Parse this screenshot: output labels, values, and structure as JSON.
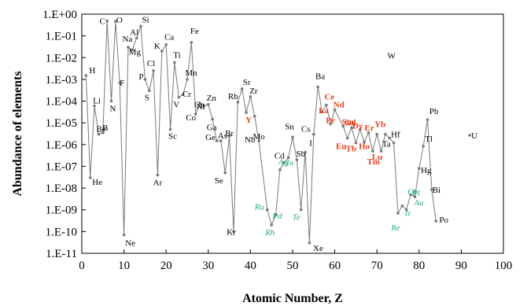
{
  "chart_data": {
    "type": "line",
    "title": "",
    "xlabel": "Atomic Number, Z",
    "ylabel": "Abundance of elements",
    "xlim": [
      0,
      100
    ],
    "ylim_log10": [
      -11,
      0
    ],
    "y_scale": "log",
    "x_ticks": [
      "0",
      "10",
      "20",
      "30",
      "40",
      "50",
      "60",
      "70",
      "80",
      "90",
      "100"
    ],
    "y_ticks": [
      "1.E-11",
      "1.E-10",
      "1.E-09",
      "1.E-08",
      "1.E-07",
      "1.E-06",
      "1.E-05",
      "1.E-04",
      "1.E-03",
      "1.E-02",
      "1.E-01",
      "1.E+00"
    ],
    "grid": false,
    "colors": {
      "line": "#7a7a7a",
      "marker": "#7a7a7a",
      "label_default": "#000000",
      "label_rare_earth": "#e8401e",
      "label_precious": "#2eab74"
    },
    "points": [
      {
        "z": 1,
        "y": 0.0015,
        "el": "H",
        "g": "n"
      },
      {
        "z": 2,
        "y": 3e-08,
        "el": "He",
        "g": "n"
      },
      {
        "z": 3,
        "y": 6e-05,
        "el": "Li",
        "g": "n"
      },
      {
        "z": 4,
        "y": 3e-06,
        "el": "Be",
        "g": "n"
      },
      {
        "z": 5,
        "y": 3.5e-06,
        "el": "B",
        "g": "n"
      },
      {
        "z": 6,
        "y": 0.5,
        "el": "C",
        "g": "n"
      },
      {
        "z": 7,
        "y": 0.0001,
        "el": "N",
        "g": "n"
      },
      {
        "z": 8,
        "y": 0.47,
        "el": "O",
        "g": "n"
      },
      {
        "z": 9,
        "y": 0.0007,
        "el": "F",
        "g": "n"
      },
      {
        "z": 10,
        "y": 7e-11,
        "el": "Ne",
        "g": "n"
      },
      {
        "z": 11,
        "y": 0.03,
        "el": "Na",
        "g": "n"
      },
      {
        "z": 12,
        "y": 0.023,
        "el": "Mg",
        "g": "n"
      },
      {
        "z": 13,
        "y": 0.08,
        "el": "Al",
        "g": "n"
      },
      {
        "z": 14,
        "y": 0.28,
        "el": "Si",
        "g": "n"
      },
      {
        "z": 15,
        "y": 0.001,
        "el": "P",
        "g": "n"
      },
      {
        "z": 16,
        "y": 0.0003,
        "el": "S",
        "g": "n"
      },
      {
        "z": 17,
        "y": 0.0025,
        "el": "Cl",
        "g": "n"
      },
      {
        "z": 18,
        "y": 4e-08,
        "el": "Ar",
        "g": "n"
      },
      {
        "z": 19,
        "y": 0.02,
        "el": "K",
        "g": "n"
      },
      {
        "z": 20,
        "y": 0.04,
        "el": "Ca",
        "g": "n"
      },
      {
        "z": 21,
        "y": 5e-06,
        "el": "Sc",
        "g": "n"
      },
      {
        "z": 22,
        "y": 0.006,
        "el": "Ti",
        "g": "n"
      },
      {
        "z": 23,
        "y": 0.00015,
        "el": "V",
        "g": "n"
      },
      {
        "z": 24,
        "y": 0.0002,
        "el": "Cr",
        "g": "n"
      },
      {
        "z": 25,
        "y": 0.001,
        "el": "Mn",
        "g": "n"
      },
      {
        "z": 26,
        "y": 0.05,
        "el": "Fe",
        "g": "n"
      },
      {
        "z": 27,
        "y": 2.5e-05,
        "el": "Co",
        "g": "n"
      },
      {
        "z": 28,
        "y": 8e-05,
        "el": "Ni",
        "g": "n"
      },
      {
        "z": 29,
        "y": 6e-05,
        "el": "Cu",
        "g": "n"
      },
      {
        "z": 30,
        "y": 7e-05,
        "el": "Zn",
        "g": "n"
      },
      {
        "z": 31,
        "y": 1.5e-05,
        "el": "Ga",
        "g": "n"
      },
      {
        "z": 32,
        "y": 1.5e-06,
        "el": "Ge",
        "g": "n"
      },
      {
        "z": 33,
        "y": 1.5e-06,
        "el": "As",
        "g": "n"
      },
      {
        "z": 34,
        "y": 5e-08,
        "el": "Se",
        "g": "n"
      },
      {
        "z": 35,
        "y": 2.5e-06,
        "el": "Br",
        "g": "n"
      },
      {
        "z": 36,
        "y": 1e-10,
        "el": "Kr",
        "g": "n"
      },
      {
        "z": 37,
        "y": 9e-05,
        "el": "Rb",
        "g": "n"
      },
      {
        "z": 38,
        "y": 0.00037,
        "el": "Sr",
        "g": "n"
      },
      {
        "z": 39,
        "y": 3e-05,
        "el": "Y",
        "g": "re"
      },
      {
        "z": 40,
        "y": 0.00016,
        "el": "Zr",
        "g": "n"
      },
      {
        "z": 41,
        "y": 2e-05,
        "el": "Nb",
        "g": "n"
      },
      {
        "z": 42,
        "y": 1.5e-06,
        "el": "Mo",
        "g": "n"
      },
      {
        "z": 44,
        "y": 1e-09,
        "el": "Ru",
        "g": "pm"
      },
      {
        "z": 45,
        "y": 2e-10,
        "el": "Rh",
        "g": "pm"
      },
      {
        "z": 46,
        "y": 6e-10,
        "el": "Pd",
        "g": "pm"
      },
      {
        "z": 47,
        "y": 7e-08,
        "el": "Ag",
        "g": "pm"
      },
      {
        "z": 48,
        "y": 1.5e-07,
        "el": "Cd",
        "g": "n"
      },
      {
        "z": 49,
        "y": 2.5e-07,
        "el": "In",
        "g": "pm"
      },
      {
        "z": 50,
        "y": 2.2e-06,
        "el": "Sn",
        "g": "n"
      },
      {
        "z": 51,
        "y": 2e-07,
        "el": "Sb",
        "g": "n"
      },
      {
        "z": 52,
        "y": 1e-09,
        "el": "Te",
        "g": "pm"
      },
      {
        "z": 53,
        "y": 4.5e-07,
        "el": "I",
        "g": "n"
      },
      {
        "z": 54,
        "y": 3e-11,
        "el": "Xe",
        "g": "n"
      },
      {
        "z": 55,
        "y": 3e-06,
        "el": "Cs",
        "g": "n"
      },
      {
        "z": 56,
        "y": 0.00045,
        "el": "Ba",
        "g": "n"
      },
      {
        "z": 57,
        "y": 3.2e-05,
        "el": "La",
        "g": "re"
      },
      {
        "z": 58,
        "y": 6.6e-05,
        "el": "Ce",
        "g": "re"
      },
      {
        "z": 59,
        "y": 9e-06,
        "el": "Pr",
        "g": "re"
      },
      {
        "z": 60,
        "y": 4e-05,
        "el": "Nd",
        "g": "re"
      },
      {
        "z": 62,
        "y": 7e-06,
        "el": "Sm",
        "g": "re"
      },
      {
        "z": 63,
        "y": 2e-06,
        "el": "Eu",
        "g": "re"
      },
      {
        "z": 64,
        "y": 6e-06,
        "el": "Gd",
        "g": "re"
      },
      {
        "z": 65,
        "y": 1.2e-06,
        "el": "Tb",
        "g": "re"
      },
      {
        "z": 66,
        "y": 5e-06,
        "el": "Dy",
        "g": "re"
      },
      {
        "z": 67,
        "y": 1.3e-06,
        "el": "Ho",
        "g": "re"
      },
      {
        "z": 68,
        "y": 3.5e-06,
        "el": "Er",
        "g": "re"
      },
      {
        "z": 69,
        "y": 5e-07,
        "el": "Tm",
        "g": "re"
      },
      {
        "z": 70,
        "y": 3e-06,
        "el": "Yb",
        "g": "re"
      },
      {
        "z": 71,
        "y": 5e-07,
        "el": "Lu",
        "g": "re"
      },
      {
        "z": 72,
        "y": 3e-06,
        "el": "Hf",
        "g": "n"
      },
      {
        "z": 73,
        "y": 2e-06,
        "el": "Ta",
        "g": "n"
      },
      {
        "z": 74,
        "y": 1.2e-06,
        "el": "W",
        "g": "n"
      },
      {
        "z": 75,
        "y": 7e-10,
        "el": "Re",
        "g": "pm"
      },
      {
        "z": 76,
        "y": 1.5e-09,
        "el": "Os",
        "g": "pm"
      },
      {
        "z": 77,
        "y": 1e-09,
        "el": "Ir",
        "g": "pm"
      },
      {
        "z": 78,
        "y": 5e-09,
        "el": "Pt",
        "g": "pm"
      },
      {
        "z": 79,
        "y": 4e-09,
        "el": "Au",
        "g": "pm"
      },
      {
        "z": 80,
        "y": 8e-08,
        "el": "Hg",
        "g": "n"
      },
      {
        "z": 81,
        "y": 8.5e-07,
        "el": "Tl",
        "g": "n"
      },
      {
        "z": 82,
        "y": 1.4e-05,
        "el": "Pb",
        "g": "n"
      },
      {
        "z": 83,
        "y": 8.5e-09,
        "el": "Bi",
        "g": "n"
      },
      {
        "z": 84,
        "y": 3e-10,
        "el": "Po",
        "g": "n"
      },
      {
        "z": 92,
        "y": 2.7e-06,
        "el": "U",
        "g": "n",
        "isolated": true
      }
    ]
  }
}
